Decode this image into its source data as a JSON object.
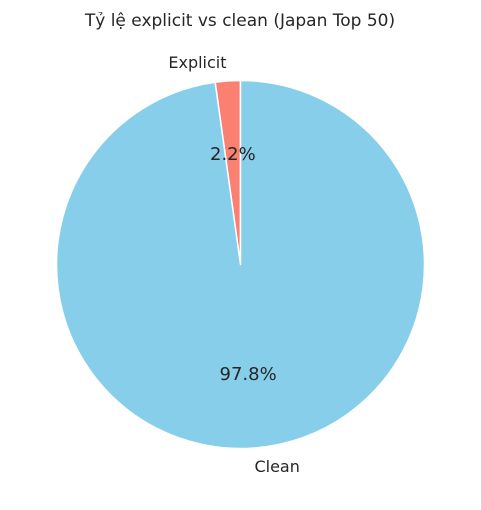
{
  "chart_data": {
    "type": "pie",
    "title": "Tỷ lệ explicit vs clean (Japan Top 50)",
    "categories": [
      "Explicit",
      "Clean"
    ],
    "values": [
      2.2,
      97.8
    ],
    "value_labels": [
      "2.2%",
      "97.8%"
    ],
    "colors": [
      "#fa8072",
      "#87ceeb"
    ],
    "start_angle_deg": 90,
    "direction": "counterclockwise",
    "legend": "none",
    "slice_edge_color": "#ffffff"
  }
}
